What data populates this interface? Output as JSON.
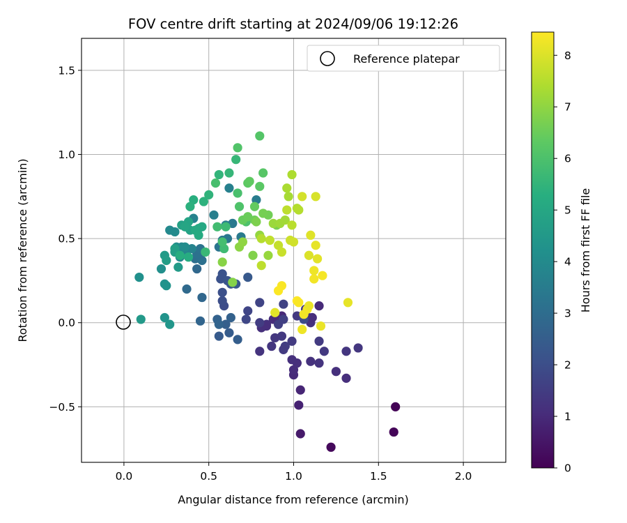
{
  "chart_data": {
    "type": "scatter",
    "title": "FOV centre drift starting at 2024/09/06 19:12:26",
    "xlabel": "Angular distance from reference (arcmin)",
    "ylabel": "Rotation from reference (arcmin)",
    "xlim": [
      -0.25,
      2.25
    ],
    "ylim": [
      -0.83,
      1.69
    ],
    "xticks": [
      0.0,
      0.5,
      1.0,
      1.5,
      2.0
    ],
    "xtick_labels": [
      "0.0",
      "0.5",
      "1.0",
      "1.5",
      "2.0"
    ],
    "yticks": [
      -0.5,
      0.0,
      0.5,
      1.0,
      1.5
    ],
    "ytick_labels": [
      "−0.5",
      "0.0",
      "0.5",
      "1.0",
      "1.5"
    ],
    "grid": true,
    "legend": {
      "position": "top-right",
      "entries": [
        "Reference platepar"
      ]
    },
    "reference_point": {
      "x": 0.0,
      "y": 0.0,
      "label": "Reference platepar"
    },
    "colorbar": {
      "label": "Hours from first FF file",
      "colormap": "viridis",
      "range": [
        0,
        8.45
      ],
      "ticks": [
        0,
        1,
        2,
        3,
        4,
        5,
        6,
        7,
        8
      ],
      "tick_labels": [
        "0",
        "1",
        "2",
        "3",
        "4",
        "5",
        "6",
        "7",
        "8"
      ]
    },
    "points": [
      [
        1.6,
        -0.5,
        0.05
      ],
      [
        1.59,
        -0.65,
        0.1
      ],
      [
        1.22,
        -0.74,
        0.2
      ],
      [
        1.04,
        -0.66,
        0.6
      ],
      [
        1.03,
        -0.49,
        0.8
      ],
      [
        1.04,
        -0.4,
        0.9
      ],
      [
        1.0,
        -0.31,
        1.0
      ],
      [
        1.0,
        -0.28,
        1.05
      ],
      [
        1.02,
        -0.24,
        1.1
      ],
      [
        0.99,
        -0.22,
        1.15
      ],
      [
        1.1,
        -0.23,
        1.2
      ],
      [
        1.15,
        -0.24,
        1.25
      ],
      [
        1.25,
        -0.29,
        1.15
      ],
      [
        1.31,
        -0.33,
        1.1
      ],
      [
        1.31,
        -0.17,
        1.3
      ],
      [
        1.38,
        -0.15,
        1.35
      ],
      [
        1.18,
        -0.17,
        1.4
      ],
      [
        1.15,
        -0.11,
        1.45
      ],
      [
        0.95,
        -0.14,
        1.5
      ],
      [
        0.94,
        -0.16,
        1.45
      ],
      [
        0.93,
        -0.08,
        1.4
      ],
      [
        0.89,
        -0.09,
        1.35
      ],
      [
        0.87,
        -0.14,
        1.3
      ],
      [
        0.8,
        -0.17,
        1.25
      ],
      [
        0.84,
        -0.01,
        1.2
      ],
      [
        0.81,
        -0.03,
        1.15
      ],
      [
        0.84,
        -0.02,
        1.1
      ],
      [
        0.88,
        0.02,
        1.05
      ],
      [
        0.9,
        0.03,
        1.0
      ],
      [
        0.93,
        0.04,
        0.95
      ],
      [
        0.91,
        -0.01,
        1.55
      ],
      [
        0.94,
        0.02,
        1.6
      ],
      [
        0.94,
        0.11,
        1.65
      ],
      [
        0.8,
        0.12,
        1.7
      ],
      [
        0.73,
        0.07,
        1.75
      ],
      [
        0.72,
        0.02,
        1.8
      ],
      [
        0.8,
        0.0,
        1.5
      ],
      [
        0.99,
        -0.11,
        1.45
      ],
      [
        1.02,
        0.04,
        1.4
      ],
      [
        1.07,
        0.08,
        1.35
      ],
      [
        1.09,
        0.03,
        1.3
      ],
      [
        1.1,
        0.0,
        1.2
      ],
      [
        1.11,
        0.03,
        1.1
      ],
      [
        1.15,
        0.1,
        1.0
      ],
      [
        1.06,
        0.02,
        1.9
      ],
      [
        0.59,
        0.1,
        1.95
      ],
      [
        0.58,
        0.13,
        2.0
      ],
      [
        0.58,
        0.18,
        2.05
      ],
      [
        0.57,
        0.26,
        2.1
      ],
      [
        0.58,
        0.29,
        2.15
      ],
      [
        0.61,
        0.25,
        2.2
      ],
      [
        0.63,
        0.23,
        2.25
      ],
      [
        0.66,
        0.23,
        2.3
      ],
      [
        0.73,
        0.27,
        2.35
      ],
      [
        0.56,
        -0.08,
        2.4
      ],
      [
        0.62,
        -0.06,
        2.45
      ],
      [
        0.67,
        -0.1,
        2.5
      ],
      [
        0.6,
        -0.01,
        2.55
      ],
      [
        0.63,
        0.03,
        2.6
      ],
      [
        0.55,
        0.02,
        2.65
      ],
      [
        0.56,
        -0.01,
        2.7
      ],
      [
        0.45,
        0.01,
        2.75
      ],
      [
        0.46,
        0.15,
        2.8
      ],
      [
        0.43,
        0.32,
        2.85
      ],
      [
        0.37,
        0.2,
        2.9
      ],
      [
        0.45,
        0.38,
        3.0
      ],
      [
        0.42,
        0.38,
        3.05
      ],
      [
        0.46,
        0.37,
        3.1
      ],
      [
        0.43,
        0.41,
        3.15
      ],
      [
        0.45,
        0.44,
        3.2
      ],
      [
        0.56,
        0.45,
        3.25
      ],
      [
        0.58,
        0.49,
        3.3
      ],
      [
        0.61,
        0.5,
        3.35
      ],
      [
        0.64,
        0.59,
        3.4
      ],
      [
        0.69,
        0.51,
        3.45
      ],
      [
        0.78,
        0.73,
        3.5
      ],
      [
        0.6,
        0.58,
        3.55
      ],
      [
        0.53,
        0.64,
        3.6
      ],
      [
        0.62,
        0.8,
        3.65
      ],
      [
        0.41,
        0.62,
        3.7
      ],
      [
        0.4,
        0.44,
        3.75
      ],
      [
        0.36,
        0.42,
        3.8
      ],
      [
        0.33,
        0.39,
        3.85
      ],
      [
        0.34,
        0.45,
        3.9
      ],
      [
        0.27,
        0.55,
        3.95
      ],
      [
        0.3,
        0.54,
        4.0
      ],
      [
        0.36,
        0.45,
        4.05
      ],
      [
        0.31,
        0.45,
        4.1
      ],
      [
        0.22,
        0.32,
        4.15
      ],
      [
        0.09,
        0.27,
        4.2
      ],
      [
        0.24,
        0.23,
        4.25
      ],
      [
        0.25,
        0.22,
        4.3
      ],
      [
        0.24,
        0.03,
        4.35
      ],
      [
        0.27,
        -0.01,
        4.4
      ],
      [
        0.1,
        0.02,
        4.5
      ],
      [
        0.32,
        0.33,
        4.55
      ],
      [
        0.24,
        0.4,
        4.6
      ],
      [
        0.25,
        0.37,
        4.65
      ],
      [
        0.3,
        0.42,
        4.7
      ],
      [
        0.3,
        0.44,
        4.75
      ],
      [
        0.34,
        0.58,
        4.8
      ],
      [
        0.39,
        0.55,
        4.85
      ],
      [
        0.38,
        0.6,
        4.9
      ],
      [
        0.36,
        0.57,
        4.95
      ],
      [
        0.44,
        0.56,
        5.0
      ],
      [
        0.46,
        0.57,
        5.05
      ],
      [
        0.42,
        0.55,
        5.1
      ],
      [
        0.44,
        0.52,
        5.15
      ],
      [
        0.38,
        0.39,
        5.2
      ],
      [
        0.33,
        0.4,
        5.25
      ],
      [
        0.41,
        0.73,
        5.3
      ],
      [
        0.39,
        0.69,
        5.35
      ],
      [
        0.47,
        0.72,
        5.4
      ],
      [
        0.5,
        0.76,
        5.45
      ],
      [
        0.56,
        0.88,
        5.5
      ],
      [
        0.62,
        0.89,
        5.55
      ],
      [
        0.66,
        0.97,
        5.6
      ],
      [
        0.48,
        0.42,
        5.65
      ],
      [
        0.6,
        0.57,
        5.7
      ],
      [
        0.59,
        0.44,
        5.75
      ],
      [
        0.55,
        0.57,
        5.8
      ],
      [
        0.58,
        0.48,
        5.85
      ],
      [
        0.54,
        0.83,
        5.9
      ],
      [
        0.67,
        0.77,
        5.95
      ],
      [
        0.72,
        0.6,
        6.0
      ],
      [
        0.68,
        0.69,
        6.05
      ],
      [
        0.67,
        1.04,
        6.1
      ],
      [
        0.8,
        1.11,
        6.15
      ],
      [
        0.82,
        0.89,
        6.2
      ],
      [
        0.8,
        0.81,
        6.25
      ],
      [
        0.73,
        0.83,
        6.3
      ],
      [
        0.74,
        0.84,
        6.35
      ],
      [
        0.77,
        0.69,
        6.4
      ],
      [
        0.7,
        0.61,
        6.45
      ],
      [
        0.73,
        0.63,
        6.5
      ],
      [
        0.77,
        0.61,
        6.55
      ],
      [
        0.85,
        0.64,
        6.6
      ],
      [
        0.82,
        0.65,
        6.65
      ],
      [
        0.9,
        0.58,
        6.7
      ],
      [
        0.78,
        0.6,
        6.75
      ],
      [
        0.76,
        0.4,
        6.8
      ],
      [
        0.64,
        0.24,
        6.85
      ],
      [
        0.58,
        0.36,
        6.9
      ],
      [
        0.68,
        0.45,
        6.95
      ],
      [
        0.7,
        0.48,
        7.0
      ],
      [
        0.8,
        0.52,
        7.05
      ],
      [
        0.85,
        0.4,
        7.1
      ],
      [
        0.88,
        0.59,
        7.15
      ],
      [
        0.92,
        0.59,
        7.2
      ],
      [
        0.95,
        0.61,
        7.25
      ],
      [
        0.97,
        0.75,
        7.3
      ],
      [
        0.96,
        0.8,
        7.35
      ],
      [
        0.99,
        0.88,
        7.4
      ],
      [
        1.02,
        0.68,
        7.45
      ],
      [
        1.03,
        0.67,
        7.5
      ],
      [
        0.99,
        0.58,
        7.55
      ],
      [
        0.96,
        0.67,
        7.6
      ],
      [
        0.86,
        0.49,
        7.65
      ],
      [
        0.91,
        0.46,
        7.7
      ],
      [
        0.93,
        0.42,
        7.75
      ],
      [
        0.98,
        0.49,
        7.8
      ],
      [
        1.0,
        0.48,
        7.85
      ],
      [
        1.05,
        0.75,
        7.9
      ],
      [
        1.13,
        0.75,
        7.95
      ],
      [
        1.09,
        0.4,
        8.0
      ],
      [
        1.1,
        0.52,
        8.05
      ],
      [
        1.14,
        0.38,
        8.1
      ],
      [
        1.13,
        0.46,
        8.15
      ],
      [
        1.16,
        -0.02,
        8.2
      ],
      [
        1.12,
        0.31,
        8.25
      ],
      [
        1.12,
        0.26,
        8.3
      ],
      [
        1.17,
        0.28,
        8.35
      ],
      [
        0.93,
        0.22,
        8.4
      ],
      [
        0.91,
        0.19,
        8.42
      ],
      [
        1.02,
        0.13,
        8.45
      ],
      [
        1.03,
        0.12,
        8.4
      ],
      [
        1.08,
        0.08,
        8.35
      ],
      [
        1.06,
        0.05,
        8.3
      ],
      [
        1.05,
        -0.04,
        8.25
      ],
      [
        1.09,
        0.1,
        8.2
      ],
      [
        1.32,
        0.12,
        8.15
      ],
      [
        0.89,
        0.06,
        8.1
      ],
      [
        0.81,
        0.34,
        7.6
      ],
      [
        0.81,
        0.5,
        7.5
      ]
    ]
  }
}
